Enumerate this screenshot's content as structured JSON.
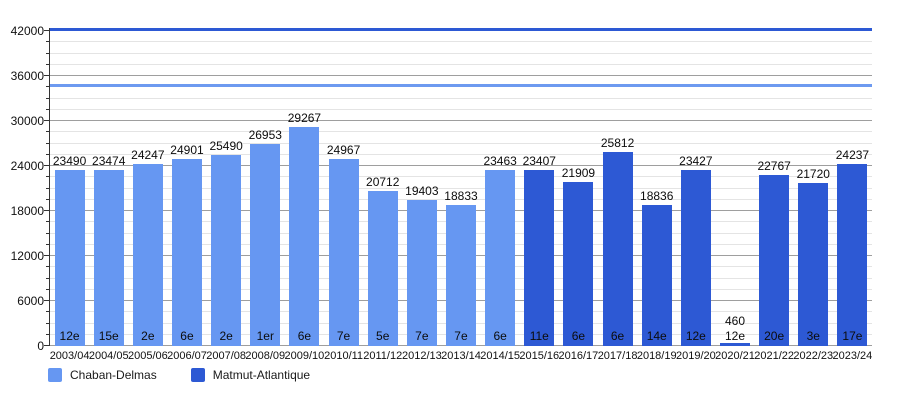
{
  "chart_data": {
    "type": "bar",
    "title": "",
    "xlabel": "",
    "ylabel": "",
    "ylim": [
      0,
      42900
    ],
    "y_ticks": [
      0,
      6000,
      12000,
      18000,
      24000,
      30000,
      36000,
      42000
    ],
    "y_minor_step": 1500,
    "grid": true,
    "legend_position": "bottom",
    "series": [
      {
        "name": "Chaban-Delmas",
        "color": "#6697f2"
      },
      {
        "name": "Matmut-Atlantique",
        "color": "#2d59d4"
      }
    ],
    "reference_lines": [
      {
        "series": "Matmut-Atlantique",
        "value": 42100,
        "color": "#2d59d4"
      },
      {
        "series": "Chaban-Delmas",
        "value": 34700,
        "color": "#6d9af0"
      }
    ],
    "bars": [
      {
        "season": "2003/04",
        "value": 23490,
        "rank": "12e",
        "series": 0
      },
      {
        "season": "2004/05",
        "value": 23474,
        "rank": "15e",
        "series": 0
      },
      {
        "season": "2005/06",
        "value": 24247,
        "rank": "2e",
        "series": 0
      },
      {
        "season": "2006/07",
        "value": 24901,
        "rank": "6e",
        "series": 0
      },
      {
        "season": "2007/08",
        "value": 25490,
        "rank": "2e",
        "series": 0
      },
      {
        "season": "2008/09",
        "value": 26953,
        "rank": "1er",
        "series": 0
      },
      {
        "season": "2009/10",
        "value": 29267,
        "rank": "6e",
        "series": 0
      },
      {
        "season": "2010/11",
        "value": 24967,
        "rank": "7e",
        "series": 0
      },
      {
        "season": "2011/12",
        "value": 20712,
        "rank": "5e",
        "series": 0
      },
      {
        "season": "2012/13",
        "value": 19403,
        "rank": "7e",
        "series": 0
      },
      {
        "season": "2013/14",
        "value": 18833,
        "rank": "7e",
        "series": 0
      },
      {
        "season": "2014/15",
        "value": 23463,
        "rank": "6e",
        "series": 0
      },
      {
        "season": "2015/16",
        "value": 23407,
        "rank": "11e",
        "series": 1
      },
      {
        "season": "2016/17",
        "value": 21909,
        "rank": "6e",
        "series": 1
      },
      {
        "season": "2017/18",
        "value": 25812,
        "rank": "6e",
        "series": 1
      },
      {
        "season": "2018/19",
        "value": 18836,
        "rank": "14e",
        "series": 1
      },
      {
        "season": "2019/20",
        "value": 23427,
        "rank": "12e",
        "series": 1
      },
      {
        "season": "2020/21",
        "value": 460,
        "rank": "12e",
        "series": 1
      },
      {
        "season": "2021/22",
        "value": 22767,
        "rank": "20e",
        "series": 1
      },
      {
        "season": "2022/23",
        "value": 21720,
        "rank": "3e",
        "series": 1
      },
      {
        "season": "2023/24",
        "value": 24237,
        "rank": "17e",
        "series": 1
      }
    ]
  }
}
